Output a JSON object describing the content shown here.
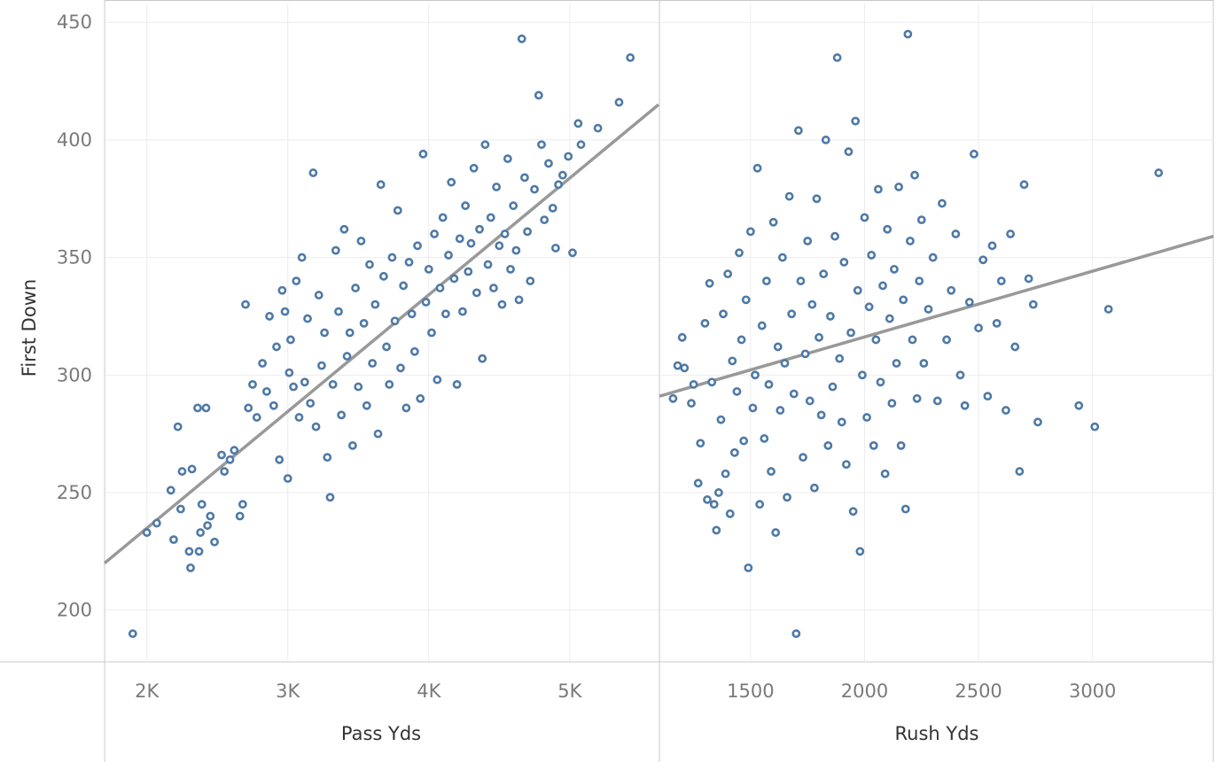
{
  "colors": {
    "point": "#4e79a7",
    "trend": "#999999",
    "grid": "#ececec",
    "frame": "#c8c8c8",
    "tick_text": "#7a7a7a",
    "axis_title": "#333333"
  },
  "chart_data": [
    {
      "type": "scatter",
      "xlabel": "Pass Yds",
      "ylabel": "First Down",
      "xlim": [
        1700,
        5630
      ],
      "ylim": [
        178,
        458
      ],
      "xticks": [
        2000,
        3000,
        4000,
        5000
      ],
      "xtick_labels": [
        "2K",
        "3K",
        "4K",
        "5K"
      ],
      "yticks": [
        200,
        250,
        300,
        350,
        400,
        450
      ],
      "ytick_labels": [
        "200",
        "250",
        "300",
        "350",
        "400",
        "450"
      ],
      "grid": true,
      "legend": "none",
      "trend_line": {
        "x": [
          1700,
          5630
        ],
        "y": [
          220,
          415
        ]
      },
      "points_sample": [
        [
          1900,
          190
        ],
        [
          2000,
          233
        ],
        [
          2070,
          237
        ],
        [
          2170,
          251
        ],
        [
          2190,
          230
        ],
        [
          2220,
          278
        ],
        [
          2240,
          243
        ],
        [
          2250,
          259
        ],
        [
          2300,
          225
        ],
        [
          2310,
          218
        ],
        [
          2320,
          260
        ],
        [
          2360,
          286
        ],
        [
          2370,
          225
        ],
        [
          2380,
          233
        ],
        [
          2390,
          245
        ],
        [
          2420,
          286
        ],
        [
          2430,
          236
        ],
        [
          2450,
          240
        ],
        [
          2480,
          229
        ],
        [
          2530,
          266
        ],
        [
          2550,
          259
        ],
        [
          2590,
          264
        ],
        [
          2620,
          268
        ],
        [
          2660,
          240
        ],
        [
          2680,
          245
        ],
        [
          2700,
          330
        ],
        [
          2720,
          286
        ],
        [
          2750,
          296
        ],
        [
          2780,
          282
        ],
        [
          2820,
          305
        ],
        [
          2850,
          293
        ],
        [
          2870,
          325
        ],
        [
          2900,
          287
        ],
        [
          2920,
          312
        ],
        [
          2940,
          264
        ],
        [
          2960,
          336
        ],
        [
          2980,
          327
        ],
        [
          3000,
          256
        ],
        [
          3010,
          301
        ],
        [
          3020,
          315
        ],
        [
          3040,
          295
        ],
        [
          3060,
          340
        ],
        [
          3080,
          282
        ],
        [
          3100,
          350
        ],
        [
          3120,
          297
        ],
        [
          3140,
          324
        ],
        [
          3160,
          288
        ],
        [
          3180,
          386
        ],
        [
          3200,
          278
        ],
        [
          3220,
          334
        ],
        [
          3240,
          304
        ],
        [
          3260,
          318
        ],
        [
          3280,
          265
        ],
        [
          3300,
          248
        ],
        [
          3320,
          296
        ],
        [
          3340,
          353
        ],
        [
          3360,
          327
        ],
        [
          3380,
          283
        ],
        [
          3400,
          362
        ],
        [
          3420,
          308
        ],
        [
          3440,
          318
        ],
        [
          3460,
          270
        ],
        [
          3480,
          337
        ],
        [
          3500,
          295
        ],
        [
          3520,
          357
        ],
        [
          3540,
          322
        ],
        [
          3560,
          287
        ],
        [
          3580,
          347
        ],
        [
          3600,
          305
        ],
        [
          3620,
          330
        ],
        [
          3640,
          275
        ],
        [
          3660,
          381
        ],
        [
          3680,
          342
        ],
        [
          3700,
          312
        ],
        [
          3720,
          296
        ],
        [
          3740,
          350
        ],
        [
          3760,
          323
        ],
        [
          3780,
          370
        ],
        [
          3800,
          303
        ],
        [
          3820,
          338
        ],
        [
          3840,
          286
        ],
        [
          3860,
          348
        ],
        [
          3880,
          326
        ],
        [
          3900,
          310
        ],
        [
          3920,
          355
        ],
        [
          3940,
          290
        ],
        [
          3960,
          394
        ],
        [
          3980,
          331
        ],
        [
          4000,
          345
        ],
        [
          4020,
          318
        ],
        [
          4040,
          360
        ],
        [
          4060,
          298
        ],
        [
          4080,
          337
        ],
        [
          4100,
          367
        ],
        [
          4120,
          326
        ],
        [
          4140,
          351
        ],
        [
          4160,
          382
        ],
        [
          4180,
          341
        ],
        [
          4200,
          296
        ],
        [
          4220,
          358
        ],
        [
          4240,
          327
        ],
        [
          4260,
          372
        ],
        [
          4280,
          344
        ],
        [
          4300,
          356
        ],
        [
          4320,
          388
        ],
        [
          4340,
          335
        ],
        [
          4360,
          362
        ],
        [
          4380,
          307
        ],
        [
          4400,
          398
        ],
        [
          4420,
          347
        ],
        [
          4440,
          367
        ],
        [
          4460,
          337
        ],
        [
          4480,
          380
        ],
        [
          4500,
          355
        ],
        [
          4520,
          330
        ],
        [
          4540,
          360
        ],
        [
          4560,
          392
        ],
        [
          4580,
          345
        ],
        [
          4600,
          372
        ],
        [
          4620,
          353
        ],
        [
          4640,
          332
        ],
        [
          4660,
          443
        ],
        [
          4680,
          384
        ],
        [
          4700,
          361
        ],
        [
          4720,
          340
        ],
        [
          4750,
          379
        ],
        [
          4780,
          419
        ],
        [
          4800,
          398
        ],
        [
          4820,
          366
        ],
        [
          4850,
          390
        ],
        [
          4880,
          371
        ],
        [
          4900,
          354
        ],
        [
          4920,
          381
        ],
        [
          4950,
          385
        ],
        [
          4990,
          393
        ],
        [
          5020,
          352
        ],
        [
          5060,
          407
        ],
        [
          5080,
          398
        ],
        [
          5200,
          405
        ],
        [
          5350,
          416
        ],
        [
          5430,
          435
        ]
      ]
    },
    {
      "type": "scatter",
      "xlabel": "Rush Yds",
      "ylabel": "First Down",
      "xlim": [
        1100,
        3530
      ],
      "ylim": [
        178,
        458
      ],
      "xticks": [
        1500,
        2000,
        2500,
        3000
      ],
      "xtick_labels": [
        "1500",
        "2000",
        "2500",
        "3000"
      ],
      "grid": true,
      "legend": "none",
      "trend_line": {
        "x": [
          1100,
          3530
        ],
        "y": [
          291,
          359
        ]
      },
      "points_sample": [
        [
          1160,
          290
        ],
        [
          1180,
          304
        ],
        [
          1200,
          316
        ],
        [
          1210,
          303
        ],
        [
          1240,
          288
        ],
        [
          1250,
          296
        ],
        [
          1270,
          254
        ],
        [
          1280,
          271
        ],
        [
          1300,
          322
        ],
        [
          1310,
          247
        ],
        [
          1320,
          339
        ],
        [
          1330,
          297
        ],
        [
          1340,
          245
        ],
        [
          1350,
          234
        ],
        [
          1360,
          250
        ],
        [
          1370,
          281
        ],
        [
          1380,
          326
        ],
        [
          1390,
          258
        ],
        [
          1400,
          343
        ],
        [
          1410,
          241
        ],
        [
          1420,
          306
        ],
        [
          1430,
          267
        ],
        [
          1440,
          293
        ],
        [
          1450,
          352
        ],
        [
          1460,
          315
        ],
        [
          1470,
          272
        ],
        [
          1480,
          332
        ],
        [
          1490,
          218
        ],
        [
          1500,
          361
        ],
        [
          1510,
          286
        ],
        [
          1520,
          300
        ],
        [
          1530,
          388
        ],
        [
          1540,
          245
        ],
        [
          1550,
          321
        ],
        [
          1560,
          273
        ],
        [
          1570,
          340
        ],
        [
          1580,
          296
        ],
        [
          1590,
          259
        ],
        [
          1600,
          365
        ],
        [
          1610,
          233
        ],
        [
          1620,
          312
        ],
        [
          1630,
          285
        ],
        [
          1640,
          350
        ],
        [
          1650,
          305
        ],
        [
          1660,
          248
        ],
        [
          1670,
          376
        ],
        [
          1680,
          326
        ],
        [
          1690,
          292
        ],
        [
          1700,
          190
        ],
        [
          1710,
          404
        ],
        [
          1720,
          340
        ],
        [
          1730,
          265
        ],
        [
          1740,
          309
        ],
        [
          1750,
          357
        ],
        [
          1760,
          289
        ],
        [
          1770,
          330
        ],
        [
          1780,
          252
        ],
        [
          1790,
          375
        ],
        [
          1800,
          316
        ],
        [
          1810,
          283
        ],
        [
          1820,
          343
        ],
        [
          1830,
          400
        ],
        [
          1840,
          270
        ],
        [
          1850,
          325
        ],
        [
          1860,
          295
        ],
        [
          1870,
          359
        ],
        [
          1880,
          435
        ],
        [
          1890,
          307
        ],
        [
          1900,
          280
        ],
        [
          1910,
          348
        ],
        [
          1920,
          262
        ],
        [
          1930,
          395
        ],
        [
          1940,
          318
        ],
        [
          1950,
          242
        ],
        [
          1960,
          408
        ],
        [
          1970,
          336
        ],
        [
          1980,
          225
        ],
        [
          1990,
          300
        ],
        [
          2000,
          367
        ],
        [
          2010,
          282
        ],
        [
          2020,
          329
        ],
        [
          2030,
          351
        ],
        [
          2040,
          270
        ],
        [
          2050,
          315
        ],
        [
          2060,
          379
        ],
        [
          2070,
          297
        ],
        [
          2080,
          338
        ],
        [
          2090,
          258
        ],
        [
          2100,
          362
        ],
        [
          2110,
          324
        ],
        [
          2120,
          288
        ],
        [
          2130,
          345
        ],
        [
          2140,
          305
        ],
        [
          2150,
          380
        ],
        [
          2160,
          270
        ],
        [
          2170,
          332
        ],
        [
          2180,
          243
        ],
        [
          2190,
          445
        ],
        [
          2200,
          357
        ],
        [
          2210,
          315
        ],
        [
          2220,
          385
        ],
        [
          2230,
          290
        ],
        [
          2240,
          340
        ],
        [
          2250,
          366
        ],
        [
          2260,
          305
        ],
        [
          2280,
          328
        ],
        [
          2300,
          350
        ],
        [
          2320,
          289
        ],
        [
          2340,
          373
        ],
        [
          2360,
          315
        ],
        [
          2380,
          336
        ],
        [
          2400,
          360
        ],
        [
          2420,
          300
        ],
        [
          2440,
          287
        ],
        [
          2460,
          331
        ],
        [
          2480,
          394
        ],
        [
          2500,
          320
        ],
        [
          2520,
          349
        ],
        [
          2540,
          291
        ],
        [
          2560,
          355
        ],
        [
          2580,
          322
        ],
        [
          2600,
          340
        ],
        [
          2620,
          285
        ],
        [
          2640,
          360
        ],
        [
          2660,
          312
        ],
        [
          2680,
          259
        ],
        [
          2700,
          381
        ],
        [
          2720,
          341
        ],
        [
          2740,
          330
        ],
        [
          2760,
          280
        ],
        [
          2940,
          287
        ],
        [
          3010,
          278
        ],
        [
          3070,
          328
        ],
        [
          3290,
          386
        ]
      ]
    }
  ]
}
